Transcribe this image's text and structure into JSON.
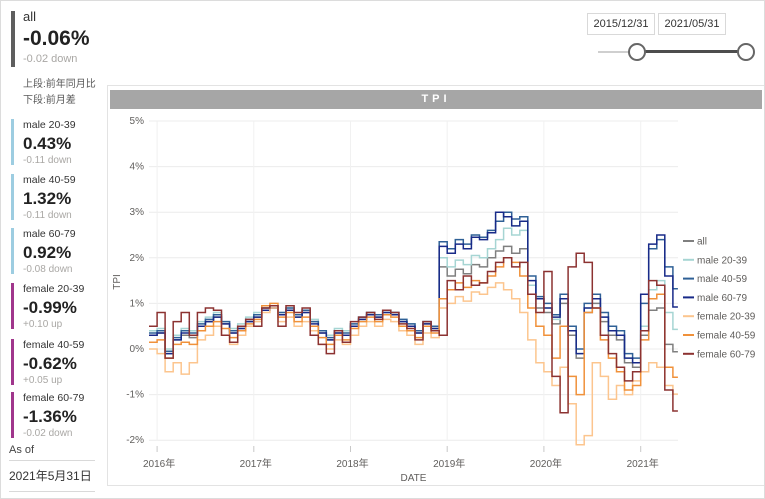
{
  "summary_card": {
    "label": "all",
    "value": "-0.06%",
    "delta": "-0.02 down",
    "accent": "#5e5e5e"
  },
  "note": {
    "line1": "上段:前年同月比",
    "line2": "下段:前月差"
  },
  "kpis": {
    "items": [
      {
        "label": "male 20-39",
        "value": "0.43%",
        "delta": "-0.11 down",
        "accent": "#9dcde1"
      },
      {
        "label": "male 40-59",
        "value": "1.32%",
        "delta": "-0.11 down",
        "accent": "#9dcde1"
      },
      {
        "label": "male 60-79",
        "value": "0.92%",
        "delta": "-0.08 down",
        "accent": "#9dcde1"
      },
      {
        "label": "female 20-39",
        "value": "-0.99%",
        "delta": "+0.10 up",
        "accent": "#a0368c"
      },
      {
        "label": "female 40-59",
        "value": "-0.62%",
        "delta": "+0.05 up",
        "accent": "#a0368c"
      },
      {
        "label": "female 60-79",
        "value": "-1.36%",
        "delta": "-0.02 down",
        "accent": "#a0368c"
      }
    ]
  },
  "as_of": {
    "label": "As of",
    "date": "2021年5月31日"
  },
  "date_slicer": {
    "start": "2015/12/31",
    "end": "2021/05/31"
  },
  "colors": {
    "title_bar": "#a6a6a6",
    "grid": "#ececec",
    "tick": "#c8c8c8",
    "axis_text": "#605e5c",
    "legend_text": "#605e5c"
  },
  "chart_data": {
    "type": "line",
    "step": true,
    "title": "TPI",
    "xlabel": "DATE",
    "ylabel": "TPI",
    "x_start": "2015-12",
    "x_end": "2021-05",
    "x_freq": "monthly",
    "x_tick_labels": [
      "2016年",
      "2017年",
      "2018年",
      "2019年",
      "2020年",
      "2021年"
    ],
    "year_start_indices": [
      1,
      13,
      25,
      37,
      49,
      61
    ],
    "y_ticks": [
      5,
      4,
      3,
      2,
      1,
      0,
      -1,
      -2
    ],
    "y_unit": "%",
    "ylim": [
      -2.4,
      5.2
    ],
    "grid": true,
    "legend_position": "right",
    "series": [
      {
        "name": "all",
        "color": "#7f7f7f",
        "values": [
          0.3,
          0.35,
          -0.1,
          0.2,
          0.3,
          0.25,
          0.5,
          0.6,
          0.7,
          0.55,
          0.35,
          0.45,
          0.6,
          0.7,
          0.85,
          0.9,
          0.75,
          0.85,
          0.7,
          0.8,
          0.6,
          0.35,
          0.2,
          0.35,
          0.3,
          0.5,
          0.65,
          0.75,
          0.7,
          0.8,
          0.75,
          0.6,
          0.5,
          0.35,
          0.55,
          0.45,
          1.8,
          1.6,
          1.75,
          1.65,
          1.85,
          1.8,
          2.0,
          2.15,
          2.25,
          2.1,
          2.2,
          1.2,
          0.9,
          0.8,
          0.55,
          1.0,
          0.3,
          -0.2,
          0.8,
          1.0,
          0.6,
          0.3,
          0.2,
          -0.3,
          -0.4,
          0.3,
          0.85,
          0.9,
          0.1,
          -0.06
        ]
      },
      {
        "name": "male 20-39",
        "color": "#a6d5d3",
        "values": [
          0.4,
          0.45,
          0.0,
          0.3,
          0.45,
          0.4,
          0.6,
          0.7,
          0.8,
          0.6,
          0.45,
          0.55,
          0.7,
          0.8,
          0.9,
          0.95,
          0.8,
          0.9,
          0.75,
          0.85,
          0.65,
          0.4,
          0.3,
          0.45,
          0.4,
          0.55,
          0.7,
          0.8,
          0.75,
          0.85,
          0.8,
          0.65,
          0.55,
          0.4,
          0.6,
          0.5,
          2.0,
          1.8,
          1.95,
          1.85,
          2.05,
          2.0,
          2.2,
          2.4,
          2.65,
          2.5,
          2.6,
          1.4,
          1.1,
          0.9,
          0.65,
          1.1,
          0.4,
          -0.1,
          0.9,
          1.1,
          0.7,
          0.4,
          0.3,
          -0.2,
          -0.3,
          0.5,
          1.3,
          1.5,
          0.8,
          0.43
        ]
      },
      {
        "name": "male 40-59",
        "color": "#2f6096",
        "values": [
          0.35,
          0.4,
          -0.05,
          0.25,
          0.4,
          0.35,
          0.55,
          0.65,
          0.75,
          0.6,
          0.4,
          0.5,
          0.65,
          0.75,
          0.9,
          0.95,
          0.8,
          0.9,
          0.75,
          0.85,
          0.6,
          0.4,
          0.25,
          0.4,
          0.35,
          0.55,
          0.7,
          0.8,
          0.75,
          0.85,
          0.8,
          0.65,
          0.55,
          0.4,
          0.6,
          0.5,
          2.35,
          2.2,
          2.4,
          2.3,
          2.5,
          2.45,
          2.6,
          2.8,
          3.0,
          2.85,
          2.9,
          1.6,
          1.15,
          1.0,
          0.75,
          1.2,
          0.5,
          0.0,
          1.0,
          1.2,
          0.8,
          0.5,
          0.4,
          -0.1,
          -0.2,
          1.0,
          2.2,
          2.4,
          1.8,
          1.32
        ]
      },
      {
        "name": "male 60-79",
        "color": "#182a88",
        "values": [
          0.3,
          0.35,
          -0.1,
          0.2,
          0.35,
          0.3,
          0.5,
          0.6,
          0.7,
          0.55,
          0.35,
          0.45,
          0.6,
          0.7,
          0.85,
          0.9,
          0.75,
          0.85,
          0.7,
          0.8,
          0.55,
          0.35,
          0.2,
          0.35,
          0.3,
          0.5,
          0.65,
          0.75,
          0.7,
          0.8,
          0.75,
          0.6,
          0.5,
          0.35,
          0.55,
          0.45,
          2.25,
          2.1,
          2.3,
          2.2,
          2.45,
          2.4,
          2.55,
          3.0,
          2.9,
          2.7,
          2.8,
          1.5,
          1.1,
          0.9,
          0.7,
          1.1,
          0.4,
          -0.1,
          0.9,
          1.1,
          0.7,
          0.4,
          0.3,
          -0.2,
          -0.3,
          1.2,
          2.3,
          2.5,
          1.6,
          0.92
        ]
      },
      {
        "name": "female 20-39",
        "color": "#fcc58e",
        "values": [
          0.0,
          -0.1,
          -0.5,
          -0.3,
          -0.55,
          -0.3,
          0.2,
          0.3,
          0.5,
          0.3,
          0.1,
          0.3,
          0.5,
          0.6,
          0.8,
          0.9,
          0.6,
          0.7,
          0.5,
          0.6,
          0.4,
          0.1,
          0.0,
          0.2,
          0.1,
          0.3,
          0.5,
          0.6,
          0.5,
          0.65,
          0.6,
          0.4,
          0.3,
          0.1,
          0.35,
          0.25,
          0.9,
          1.0,
          1.15,
          1.05,
          1.25,
          1.2,
          1.35,
          1.45,
          1.3,
          1.1,
          0.8,
          0.2,
          -0.3,
          -0.5,
          -0.8,
          -0.4,
          -1.2,
          -2.1,
          -1.9,
          -0.3,
          -0.6,
          -1.1,
          -0.8,
          -1.0,
          -0.7,
          -0.5,
          -0.3,
          -0.4,
          -0.8,
          -0.99
        ]
      },
      {
        "name": "female 40-59",
        "color": "#f0913a",
        "values": [
          0.15,
          0.2,
          -0.2,
          0.1,
          0.15,
          0.1,
          0.4,
          0.5,
          0.6,
          0.45,
          0.25,
          0.4,
          0.55,
          0.65,
          0.95,
          1.0,
          0.7,
          0.8,
          0.6,
          0.7,
          0.5,
          0.25,
          0.1,
          0.3,
          0.2,
          0.45,
          0.6,
          0.7,
          0.6,
          0.75,
          0.7,
          0.5,
          0.4,
          0.25,
          0.5,
          0.35,
          1.1,
          1.3,
          1.45,
          1.35,
          1.5,
          1.45,
          1.6,
          1.8,
          2.0,
          1.9,
          1.6,
          0.9,
          0.5,
          0.3,
          -0.2,
          0.5,
          -0.6,
          -1.0,
          0.8,
          0.9,
          0.2,
          -0.2,
          -0.5,
          -0.9,
          -0.8,
          0.2,
          1.1,
          1.2,
          -0.4,
          -0.62
        ]
      },
      {
        "name": "female 60-79",
        "color": "#8c3231",
        "values": [
          0.5,
          0.8,
          -0.2,
          0.6,
          0.8,
          0.3,
          0.8,
          0.9,
          0.85,
          0.3,
          0.15,
          0.5,
          0.65,
          0.5,
          0.9,
          0.95,
          0.5,
          0.95,
          0.8,
          0.9,
          0.3,
          0.1,
          -0.1,
          0.4,
          0.15,
          0.6,
          0.7,
          0.8,
          0.65,
          0.85,
          0.8,
          0.55,
          0.45,
          0.2,
          0.6,
          0.4,
          0.3,
          1.5,
          1.3,
          1.6,
          1.4,
          1.45,
          1.7,
          1.9,
          2.0,
          1.8,
          1.9,
          1.2,
          0.8,
          1.7,
          -0.6,
          -1.4,
          1.8,
          2.1,
          1.9,
          0.9,
          0.3,
          -0.1,
          -0.4,
          -0.7,
          -0.5,
          0.4,
          1.5,
          1.4,
          -0.9,
          -1.36
        ]
      }
    ]
  }
}
